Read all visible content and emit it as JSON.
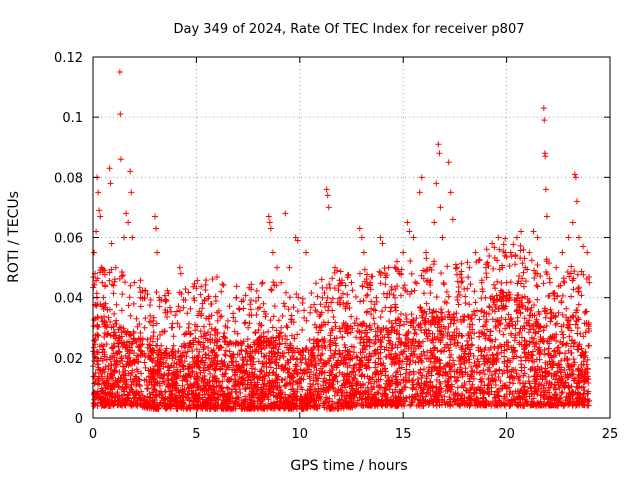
{
  "chart_data": {
    "type": "scatter",
    "title": "Day 349 of 2024, Rate Of TEC Index for receiver p807",
    "xlabel": "GPS time / hours",
    "ylabel": "ROTI / TECUs",
    "xlim": [
      0,
      25
    ],
    "ylim": [
      0,
      0.12
    ],
    "x_ticks": [
      0,
      5,
      10,
      15,
      20,
      25
    ],
    "x_tick_labels": [
      "0",
      "5",
      "10",
      "15",
      "20",
      "25"
    ],
    "y_ticks": [
      0,
      0.02,
      0.04,
      0.06,
      0.08,
      0.1,
      0.12
    ],
    "y_tick_labels": [
      "0",
      "0.02",
      "0.04",
      "0.06",
      "0.08",
      "0.1",
      "0.12"
    ],
    "grid": true,
    "marker": "+",
    "marker_color": "#ff0000",
    "series": [
      {
        "name": "ROTI",
        "points": [
          [
            0.05,
            0.055
          ],
          [
            0.1,
            0.048
          ],
          [
            0.15,
            0.062
          ],
          [
            0.2,
            0.08
          ],
          [
            0.25,
            0.075
          ],
          [
            0.3,
            0.069
          ],
          [
            0.35,
            0.067
          ],
          [
            0.4,
            0.05
          ],
          [
            0.45,
            0.045
          ],
          [
            0.5,
            0.04
          ],
          [
            0.6,
            0.038
          ],
          [
            0.7,
            0.036
          ],
          [
            0.8,
            0.083
          ],
          [
            0.85,
            0.078
          ],
          [
            0.9,
            0.058
          ],
          [
            1.0,
            0.044
          ],
          [
            1.1,
            0.05
          ],
          [
            1.3,
            0.115
          ],
          [
            1.32,
            0.101
          ],
          [
            1.35,
            0.086
          ],
          [
            1.5,
            0.06
          ],
          [
            1.6,
            0.068
          ],
          [
            1.7,
            0.065
          ],
          [
            1.8,
            0.082
          ],
          [
            1.85,
            0.075
          ],
          [
            1.9,
            0.06
          ],
          [
            2.0,
            0.045
          ],
          [
            2.1,
            0.033
          ],
          [
            2.3,
            0.04
          ],
          [
            2.5,
            0.03
          ],
          [
            2.8,
            0.032
          ],
          [
            3.0,
            0.067
          ],
          [
            3.05,
            0.063
          ],
          [
            3.1,
            0.055
          ],
          [
            3.2,
            0.04
          ],
          [
            3.5,
            0.035
          ],
          [
            3.8,
            0.03
          ],
          [
            4.2,
            0.05
          ],
          [
            4.25,
            0.048
          ],
          [
            4.5,
            0.028
          ],
          [
            5.2,
            0.041
          ],
          [
            5.3,
            0.038
          ],
          [
            5.6,
            0.033
          ],
          [
            6.0,
            0.035
          ],
          [
            6.5,
            0.03
          ],
          [
            7.0,
            0.028
          ],
          [
            7.5,
            0.03
          ],
          [
            8.0,
            0.04
          ],
          [
            8.2,
            0.045
          ],
          [
            8.5,
            0.067
          ],
          [
            8.55,
            0.065
          ],
          [
            8.6,
            0.063
          ],
          [
            8.7,
            0.055
          ],
          [
            8.9,
            0.05
          ],
          [
            9.1,
            0.045
          ],
          [
            9.3,
            0.068
          ],
          [
            9.5,
            0.05
          ],
          [
            9.8,
            0.06
          ],
          [
            9.9,
            0.059
          ],
          [
            10.3,
            0.055
          ],
          [
            10.5,
            0.035
          ],
          [
            10.8,
            0.03
          ],
          [
            11.3,
            0.076
          ],
          [
            11.35,
            0.074
          ],
          [
            11.4,
            0.07
          ],
          [
            11.7,
            0.05
          ],
          [
            11.8,
            0.049
          ],
          [
            12.0,
            0.04
          ],
          [
            12.2,
            0.037
          ],
          [
            12.5,
            0.045
          ],
          [
            12.9,
            0.063
          ],
          [
            13.0,
            0.06
          ],
          [
            13.1,
            0.055
          ],
          [
            13.4,
            0.045
          ],
          [
            13.7,
            0.04
          ],
          [
            13.9,
            0.06
          ],
          [
            14.0,
            0.058
          ],
          [
            14.3,
            0.05
          ],
          [
            14.7,
            0.052
          ],
          [
            15.0,
            0.055
          ],
          [
            15.2,
            0.065
          ],
          [
            15.3,
            0.062
          ],
          [
            15.5,
            0.06
          ],
          [
            15.8,
            0.075
          ],
          [
            15.9,
            0.08
          ],
          [
            16.1,
            0.055
          ],
          [
            16.3,
            0.05
          ],
          [
            16.5,
            0.065
          ],
          [
            16.6,
            0.078
          ],
          [
            16.7,
            0.091
          ],
          [
            16.75,
            0.088
          ],
          [
            16.8,
            0.07
          ],
          [
            16.9,
            0.06
          ],
          [
            17.2,
            0.085
          ],
          [
            17.3,
            0.075
          ],
          [
            17.4,
            0.066
          ],
          [
            17.6,
            0.05
          ],
          [
            17.8,
            0.045
          ],
          [
            18.2,
            0.05
          ],
          [
            18.5,
            0.055
          ],
          [
            18.8,
            0.045
          ],
          [
            19.0,
            0.05
          ],
          [
            19.3,
            0.058
          ],
          [
            19.6,
            0.06
          ],
          [
            19.8,
            0.05
          ],
          [
            20.0,
            0.045
          ],
          [
            20.2,
            0.055
          ],
          [
            20.5,
            0.06
          ],
          [
            20.7,
            0.062
          ],
          [
            20.9,
            0.05
          ],
          [
            21.1,
            0.055
          ],
          [
            21.3,
            0.062
          ],
          [
            21.5,
            0.06
          ],
          [
            21.8,
            0.103
          ],
          [
            21.82,
            0.099
          ],
          [
            21.85,
            0.088
          ],
          [
            21.87,
            0.087
          ],
          [
            21.9,
            0.076
          ],
          [
            21.95,
            0.067
          ],
          [
            22.1,
            0.045
          ],
          [
            22.4,
            0.05
          ],
          [
            22.7,
            0.055
          ],
          [
            23.0,
            0.06
          ],
          [
            23.2,
            0.065
          ],
          [
            23.3,
            0.081
          ],
          [
            23.35,
            0.08
          ],
          [
            23.4,
            0.072
          ],
          [
            23.5,
            0.06
          ],
          [
            23.7,
            0.057
          ],
          [
            23.9,
            0.055
          ],
          [
            24.0,
            0.045
          ]
        ]
      }
    ],
    "dense_band": {
      "description_hours_vs_typical_range": [
        [
          0,
          0.004,
          0.03
        ],
        [
          1,
          0.004,
          0.028
        ],
        [
          2,
          0.004,
          0.025
        ],
        [
          3,
          0.003,
          0.022
        ],
        [
          4,
          0.003,
          0.02
        ],
        [
          5,
          0.003,
          0.024
        ],
        [
          6,
          0.003,
          0.025
        ],
        [
          7,
          0.003,
          0.022
        ],
        [
          8,
          0.003,
          0.024
        ],
        [
          9,
          0.003,
          0.024
        ],
        [
          10,
          0.003,
          0.02
        ],
        [
          11,
          0.003,
          0.024
        ],
        [
          12,
          0.003,
          0.028
        ],
        [
          13,
          0.004,
          0.028
        ],
        [
          14,
          0.004,
          0.028
        ],
        [
          15,
          0.004,
          0.03
        ],
        [
          16,
          0.004,
          0.032
        ],
        [
          17,
          0.004,
          0.032
        ],
        [
          18,
          0.004,
          0.03
        ],
        [
          19,
          0.004,
          0.035
        ],
        [
          20,
          0.004,
          0.038
        ],
        [
          21,
          0.004,
          0.035
        ],
        [
          22,
          0.004,
          0.032
        ],
        [
          23,
          0.004,
          0.03
        ],
        [
          24,
          0.004,
          0.028
        ]
      ]
    }
  }
}
